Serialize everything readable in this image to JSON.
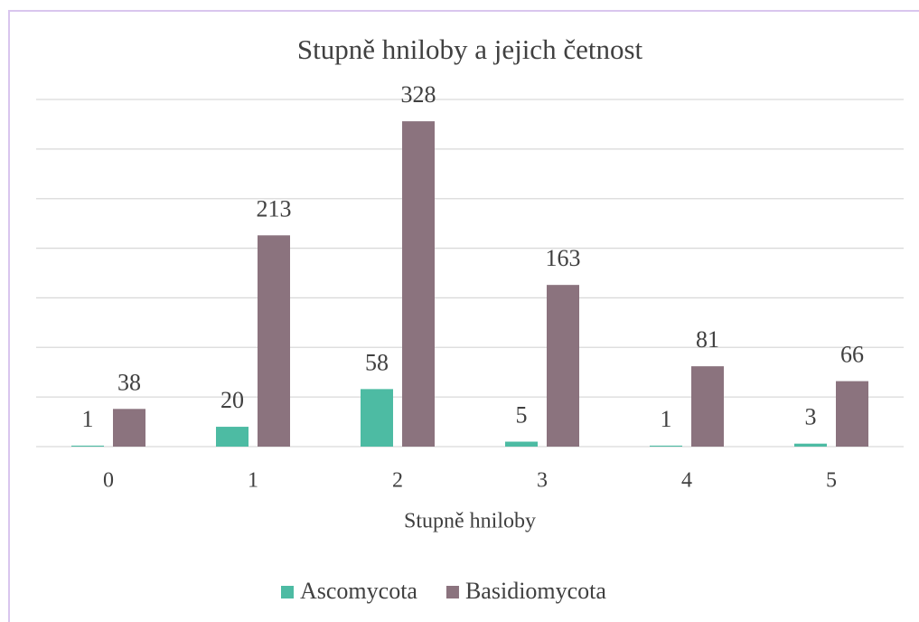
{
  "chart_data": {
    "type": "bar",
    "title": "Stupně hniloby a jejich četnost",
    "xlabel": "Stupně hniloby",
    "categories": [
      "0",
      "1",
      "2",
      "3",
      "4",
      "5"
    ],
    "series": [
      {
        "name": "Ascomycota",
        "color": "#4dbba3",
        "values": [
          1,
          20,
          58,
          5,
          1,
          3
        ]
      },
      {
        "name": "Basidiomycota",
        "color": "#8b737e",
        "values": [
          38,
          213,
          328,
          163,
          81,
          66
        ]
      }
    ],
    "ylim": [
      0,
      350
    ],
    "yticks": [
      0,
      50,
      100,
      150,
      200,
      250,
      300,
      350
    ],
    "grid": true,
    "legend": "bottom"
  }
}
